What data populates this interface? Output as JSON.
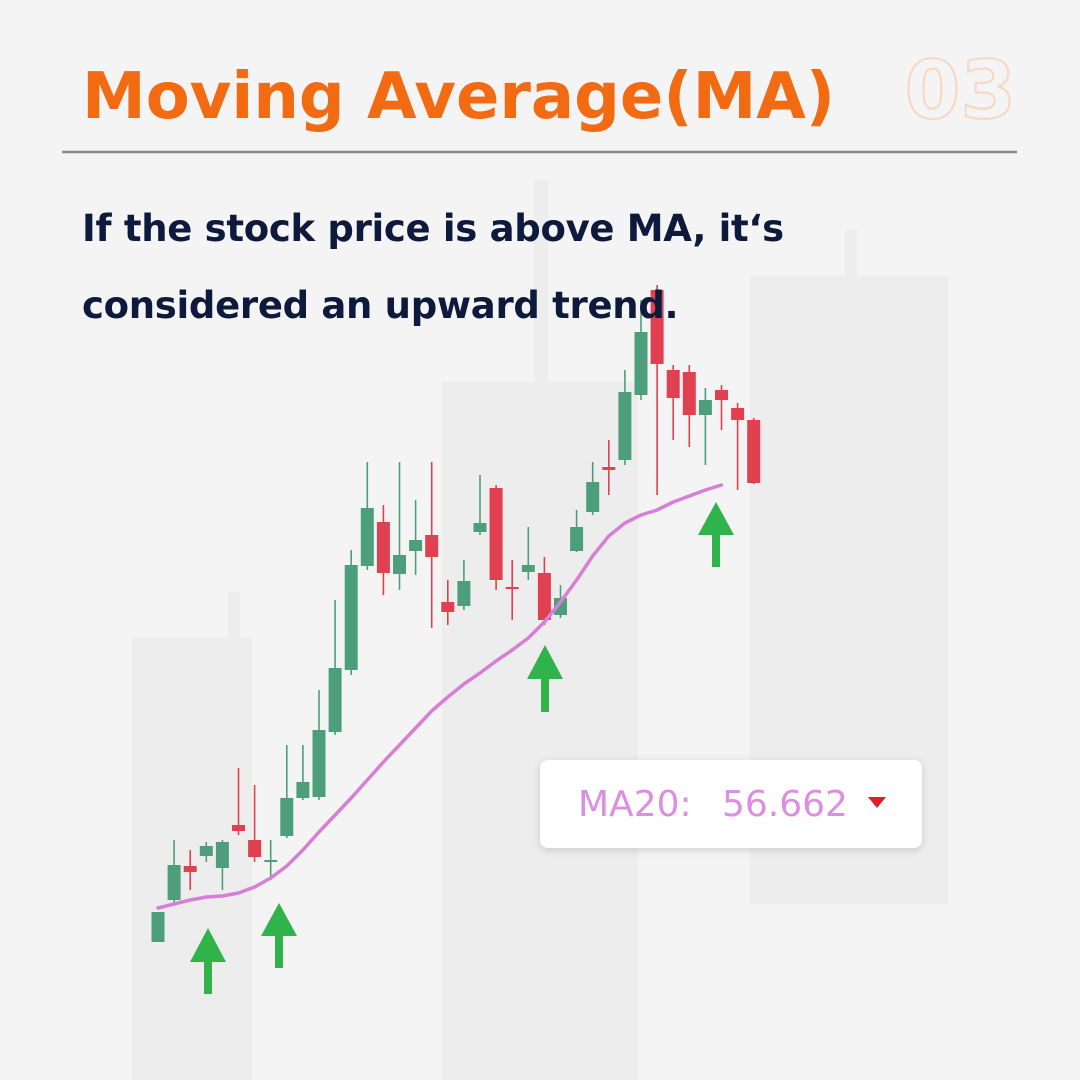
{
  "header": {
    "title": "Moving Average(MA)",
    "page_number": "03"
  },
  "subtitle": "If the stock price is above MA, it‘s considered an upward trend.",
  "chart_data": {
    "type": "candlestick",
    "up_color": "#4c9f7a",
    "down_color": "#e04050",
    "ylim": [
      0,
      75
    ],
    "open": [
      5.8,
      10.0,
      13.4,
      14.4,
      13.2,
      17.5,
      16.0,
      13.8,
      16.4,
      20.2,
      20.3,
      26.8,
      33.0,
      43.4,
      47.8,
      42.6,
      44.9,
      46.5,
      39.8,
      39.4,
      46.8,
      51.2,
      41.3,
      42.8,
      42.7,
      38.5,
      44.9,
      48.8,
      53.3,
      54.0,
      60.5,
      71.0,
      63.0,
      62.8,
      58.5,
      61.0,
      59.2,
      58.0
    ],
    "high": [
      8.8,
      16.0,
      15.0,
      15.8,
      16.0,
      23.2,
      21.5,
      16.0,
      25.5,
      25.5,
      31.0,
      40.0,
      45.0,
      53.8,
      49.5,
      53.8,
      50.0,
      53.8,
      42.0,
      44.0,
      52.5,
      51.5,
      44.0,
      47.3,
      44.3,
      41.5,
      49.0,
      53.8,
      56.0,
      63.0,
      70.0,
      71.5,
      63.5,
      63.5,
      61.2,
      61.5,
      59.7,
      58.2
    ],
    "low": [
      5.8,
      9.5,
      11.0,
      13.8,
      11.0,
      16.5,
      13.8,
      12.0,
      16.2,
      20.0,
      20.0,
      26.5,
      32.5,
      43.0,
      40.5,
      41.0,
      42.5,
      37.2,
      37.5,
      39.0,
      46.5,
      41.0,
      38.0,
      42.0,
      37.5,
      38.2,
      44.8,
      48.5,
      50.5,
      53.5,
      60.0,
      50.5,
      56.0,
      55.3,
      53.5,
      57.0,
      51.0,
      51.6
    ],
    "close": [
      8.8,
      13.5,
      12.8,
      15.4,
      15.8,
      16.9,
      14.3,
      14.0,
      20.2,
      21.8,
      27.0,
      33.2,
      43.5,
      49.2,
      42.7,
      44.5,
      46.0,
      44.3,
      38.8,
      41.9,
      47.7,
      42.0,
      41.1,
      43.5,
      38.0,
      40.2,
      47.3,
      51.8,
      53.0,
      60.8,
      66.8,
      63.6,
      60.2,
      58.5,
      60.0,
      60.0,
      58.0,
      51.7
    ],
    "series": [
      {
        "name": "MA20:",
        "color": "#d77ed6",
        "values": [
          9.2,
          9.6,
          10.0,
          10.3,
          10.4,
          10.7,
          11.3,
          12.2,
          13.4,
          15.0,
          16.8,
          18.5,
          20.2,
          22.0,
          23.8,
          25.5,
          27.2,
          28.9,
          30.3,
          31.6,
          32.7,
          33.9,
          35.0,
          36.2,
          37.8,
          39.8,
          42.0,
          44.4,
          46.4,
          47.7,
          48.5,
          49.0,
          49.8,
          50.4,
          51.0,
          51.5,
          null,
          null
        ],
        "readout": 56.662
      }
    ]
  }
}
